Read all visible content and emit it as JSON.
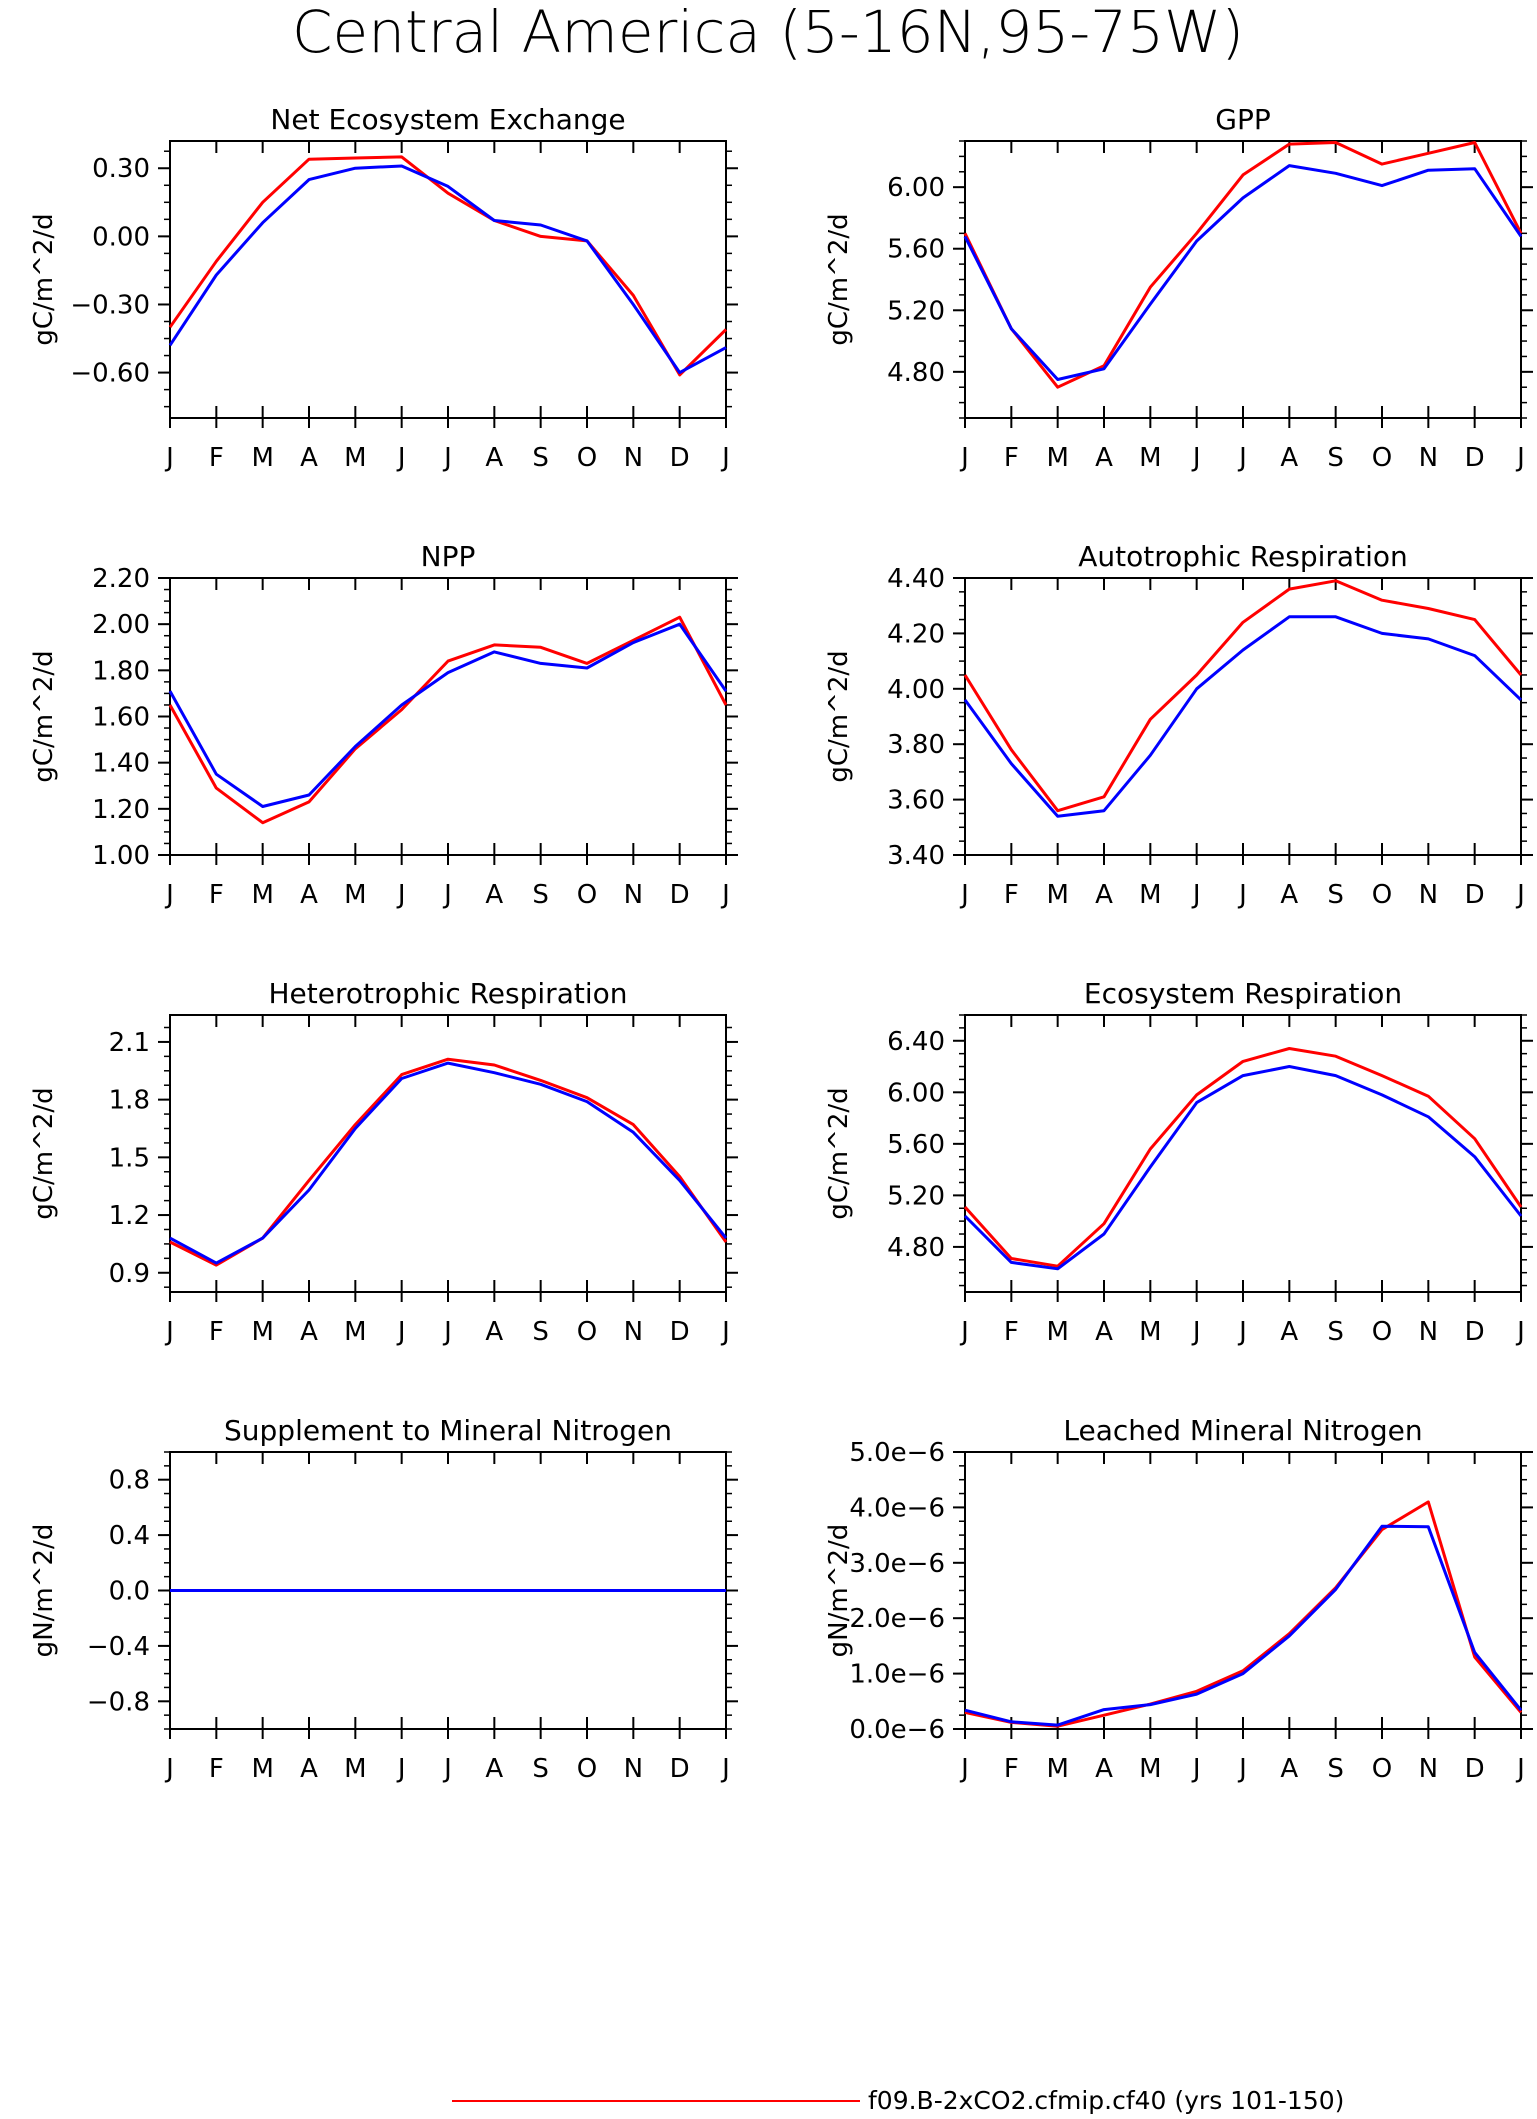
{
  "page_title": "Central America (5-16N,95-75W)",
  "colors": {
    "series_a": "#ff0000",
    "series_b": "#0000ff",
    "axis": "#000000"
  },
  "legend": {
    "entries": [
      {
        "label": "f09.B-2xCO2.cfmip.cf40 (yrs 101-150)",
        "color": "#ff0000"
      }
    ]
  },
  "chart_data": [
    {
      "type": "line",
      "title": "Net Ecosystem Exchange",
      "ylabel": "gC/m^2/d",
      "categories": [
        "J",
        "F",
        "M",
        "A",
        "M",
        "J",
        "J",
        "A",
        "S",
        "O",
        "N",
        "D",
        "J"
      ],
      "ylim": [
        -0.8,
        0.42
      ],
      "yticks": [
        0.3,
        0.0,
        -0.3,
        -0.6
      ],
      "ytick_labels": [
        "0.30",
        "0.00",
        "−0.30",
        "−0.60"
      ],
      "series": [
        {
          "color": "#ff0000",
          "values": [
            -0.4,
            -0.11,
            0.15,
            0.34,
            0.345,
            0.35,
            0.19,
            0.07,
            0.0,
            -0.02,
            -0.26,
            -0.61,
            -0.41
          ]
        },
        {
          "color": "#0000ff",
          "values": [
            -0.48,
            -0.17,
            0.06,
            0.25,
            0.3,
            0.31,
            0.22,
            0.07,
            0.05,
            -0.02,
            -0.3,
            -0.6,
            -0.49
          ]
        }
      ]
    },
    {
      "type": "line",
      "title": "GPP",
      "ylabel": "gC/m^2/d",
      "categories": [
        "J",
        "F",
        "M",
        "A",
        "M",
        "J",
        "J",
        "A",
        "S",
        "O",
        "N",
        "D",
        "J"
      ],
      "ylim": [
        4.5,
        6.3
      ],
      "yticks": [
        6.0,
        5.6,
        5.2,
        4.8
      ],
      "ytick_labels": [
        "6.00",
        "5.60",
        "5.20",
        "4.80"
      ],
      "series": [
        {
          "color": "#ff0000",
          "values": [
            5.7,
            5.08,
            4.7,
            4.84,
            5.35,
            5.7,
            6.08,
            6.28,
            6.29,
            6.15,
            6.22,
            6.29,
            5.7
          ]
        },
        {
          "color": "#0000ff",
          "values": [
            5.68,
            5.08,
            4.75,
            4.82,
            5.24,
            5.65,
            5.93,
            6.14,
            6.09,
            6.01,
            6.11,
            6.12,
            5.68
          ]
        }
      ]
    },
    {
      "type": "line",
      "title": "NPP",
      "ylabel": "gC/m^2/d",
      "categories": [
        "J",
        "F",
        "M",
        "A",
        "M",
        "J",
        "J",
        "A",
        "S",
        "O",
        "N",
        "D",
        "J"
      ],
      "ylim": [
        1.0,
        2.2
      ],
      "yticks": [
        2.2,
        2.0,
        1.8,
        1.6,
        1.4,
        1.2,
        1.0
      ],
      "ytick_labels": [
        "2.20",
        "2.00",
        "1.80",
        "1.60",
        "1.40",
        "1.20",
        "1.00"
      ],
      "series": [
        {
          "color": "#ff0000",
          "values": [
            1.65,
            1.29,
            1.14,
            1.23,
            1.46,
            1.63,
            1.84,
            1.91,
            1.9,
            1.83,
            1.93,
            2.03,
            1.65
          ]
        },
        {
          "color": "#0000ff",
          "values": [
            1.71,
            1.35,
            1.21,
            1.26,
            1.47,
            1.65,
            1.79,
            1.88,
            1.83,
            1.81,
            1.92,
            2.0,
            1.71
          ]
        }
      ]
    },
    {
      "type": "line",
      "title": "Autotrophic Respiration",
      "ylabel": "gC/m^2/d",
      "categories": [
        "J",
        "F",
        "M",
        "A",
        "M",
        "J",
        "J",
        "A",
        "S",
        "O",
        "N",
        "D",
        "J"
      ],
      "ylim": [
        3.4,
        4.4
      ],
      "yticks": [
        4.4,
        4.2,
        4.0,
        3.8,
        3.6,
        3.4
      ],
      "ytick_labels": [
        "4.40",
        "4.20",
        "4.00",
        "3.80",
        "3.60",
        "3.40"
      ],
      "series": [
        {
          "color": "#ff0000",
          "values": [
            4.05,
            3.78,
            3.56,
            3.61,
            3.89,
            4.05,
            4.24,
            4.36,
            4.39,
            4.32,
            4.29,
            4.25,
            4.05
          ]
        },
        {
          "color": "#0000ff",
          "values": [
            3.96,
            3.73,
            3.54,
            3.56,
            3.76,
            4.0,
            4.14,
            4.26,
            4.26,
            4.2,
            4.18,
            4.12,
            3.96
          ]
        }
      ]
    },
    {
      "type": "line",
      "title": "Heterotrophic Respiration",
      "ylabel": "gC/m^2/d",
      "categories": [
        "J",
        "F",
        "M",
        "A",
        "M",
        "J",
        "J",
        "A",
        "S",
        "O",
        "N",
        "D",
        "J"
      ],
      "ylim": [
        0.8,
        2.24
      ],
      "yticks": [
        2.1,
        1.8,
        1.5,
        1.2,
        0.9
      ],
      "ytick_labels": [
        "2.1",
        "1.8",
        "1.5",
        "1.2",
        "0.9"
      ],
      "series": [
        {
          "color": "#ff0000",
          "values": [
            1.06,
            0.94,
            1.08,
            1.38,
            1.67,
            1.93,
            2.01,
            1.98,
            1.9,
            1.81,
            1.67,
            1.4,
            1.06
          ]
        },
        {
          "color": "#0000ff",
          "values": [
            1.08,
            0.95,
            1.08,
            1.33,
            1.65,
            1.91,
            1.99,
            1.94,
            1.88,
            1.79,
            1.63,
            1.38,
            1.08
          ]
        }
      ]
    },
    {
      "type": "line",
      "title": "Ecosystem Respiration",
      "ylabel": "gC/m^2/d",
      "categories": [
        "J",
        "F",
        "M",
        "A",
        "M",
        "J",
        "J",
        "A",
        "S",
        "O",
        "N",
        "D",
        "J"
      ],
      "ylim": [
        4.45,
        6.6
      ],
      "yticks": [
        6.4,
        6.0,
        5.6,
        5.2,
        4.8
      ],
      "ytick_labels": [
        "6.40",
        "6.00",
        "5.60",
        "5.20",
        "4.80"
      ],
      "series": [
        {
          "color": "#ff0000",
          "values": [
            5.11,
            4.71,
            4.65,
            4.98,
            5.56,
            5.98,
            6.24,
            6.34,
            6.28,
            6.13,
            5.97,
            5.64,
            5.11
          ]
        },
        {
          "color": "#0000ff",
          "values": [
            5.04,
            4.68,
            4.63,
            4.9,
            5.42,
            5.92,
            6.13,
            6.2,
            6.13,
            5.98,
            5.81,
            5.5,
            5.04
          ]
        }
      ]
    },
    {
      "type": "line",
      "title": "Supplement to Mineral Nitrogen",
      "ylabel": "gN/m^2/d",
      "categories": [
        "J",
        "F",
        "M",
        "A",
        "M",
        "J",
        "J",
        "A",
        "S",
        "O",
        "N",
        "D",
        "J"
      ],
      "ylim": [
        -1.0,
        1.0
      ],
      "yticks": [
        0.8,
        0.4,
        0.0,
        -0.4,
        -0.8
      ],
      "ytick_labels": [
        "0.8",
        "0.4",
        "0.0",
        "−0.4",
        "−0.8"
      ],
      "series": [
        {
          "color": "#ff0000",
          "values": [
            0,
            0,
            0,
            0,
            0,
            0,
            0,
            0,
            0,
            0,
            0,
            0,
            0
          ]
        },
        {
          "color": "#0000ff",
          "values": [
            0,
            0,
            0,
            0,
            0,
            0,
            0,
            0,
            0,
            0,
            0,
            0,
            0
          ]
        }
      ]
    },
    {
      "type": "line",
      "title": "Leached Mineral Nitrogen",
      "ylabel": "gN/m^2/d",
      "categories": [
        "J",
        "F",
        "M",
        "A",
        "M",
        "J",
        "J",
        "A",
        "S",
        "O",
        "N",
        "D",
        "J"
      ],
      "ylim": [
        0,
        5e-06
      ],
      "yticks": [
        5e-06,
        4e-06,
        3e-06,
        2e-06,
        1e-06,
        0
      ],
      "ytick_labels": [
        "5.0e−6",
        "4.0e−6",
        "3.0e−6",
        "2.0e−6",
        "1.0e−6",
        "0.0e−6"
      ],
      "series": [
        {
          "color": "#ff0000",
          "values": [
            3e-07,
            1.2e-07,
            5e-08,
            2.5e-07,
            4.5e-07,
            6.8e-07,
            1.05e-06,
            1.72e-06,
            2.55e-06,
            3.6e-06,
            4.1e-06,
            1.3e-06,
            3e-07
          ]
        },
        {
          "color": "#0000ff",
          "values": [
            3.4e-07,
            1.3e-07,
            7e-08,
            3.5e-07,
            4.4e-07,
            6.3e-07,
            1e-06,
            1.68e-06,
            2.52e-06,
            3.66e-06,
            3.65e-06,
            1.38e-06,
            3.4e-07
          ]
        }
      ]
    }
  ]
}
